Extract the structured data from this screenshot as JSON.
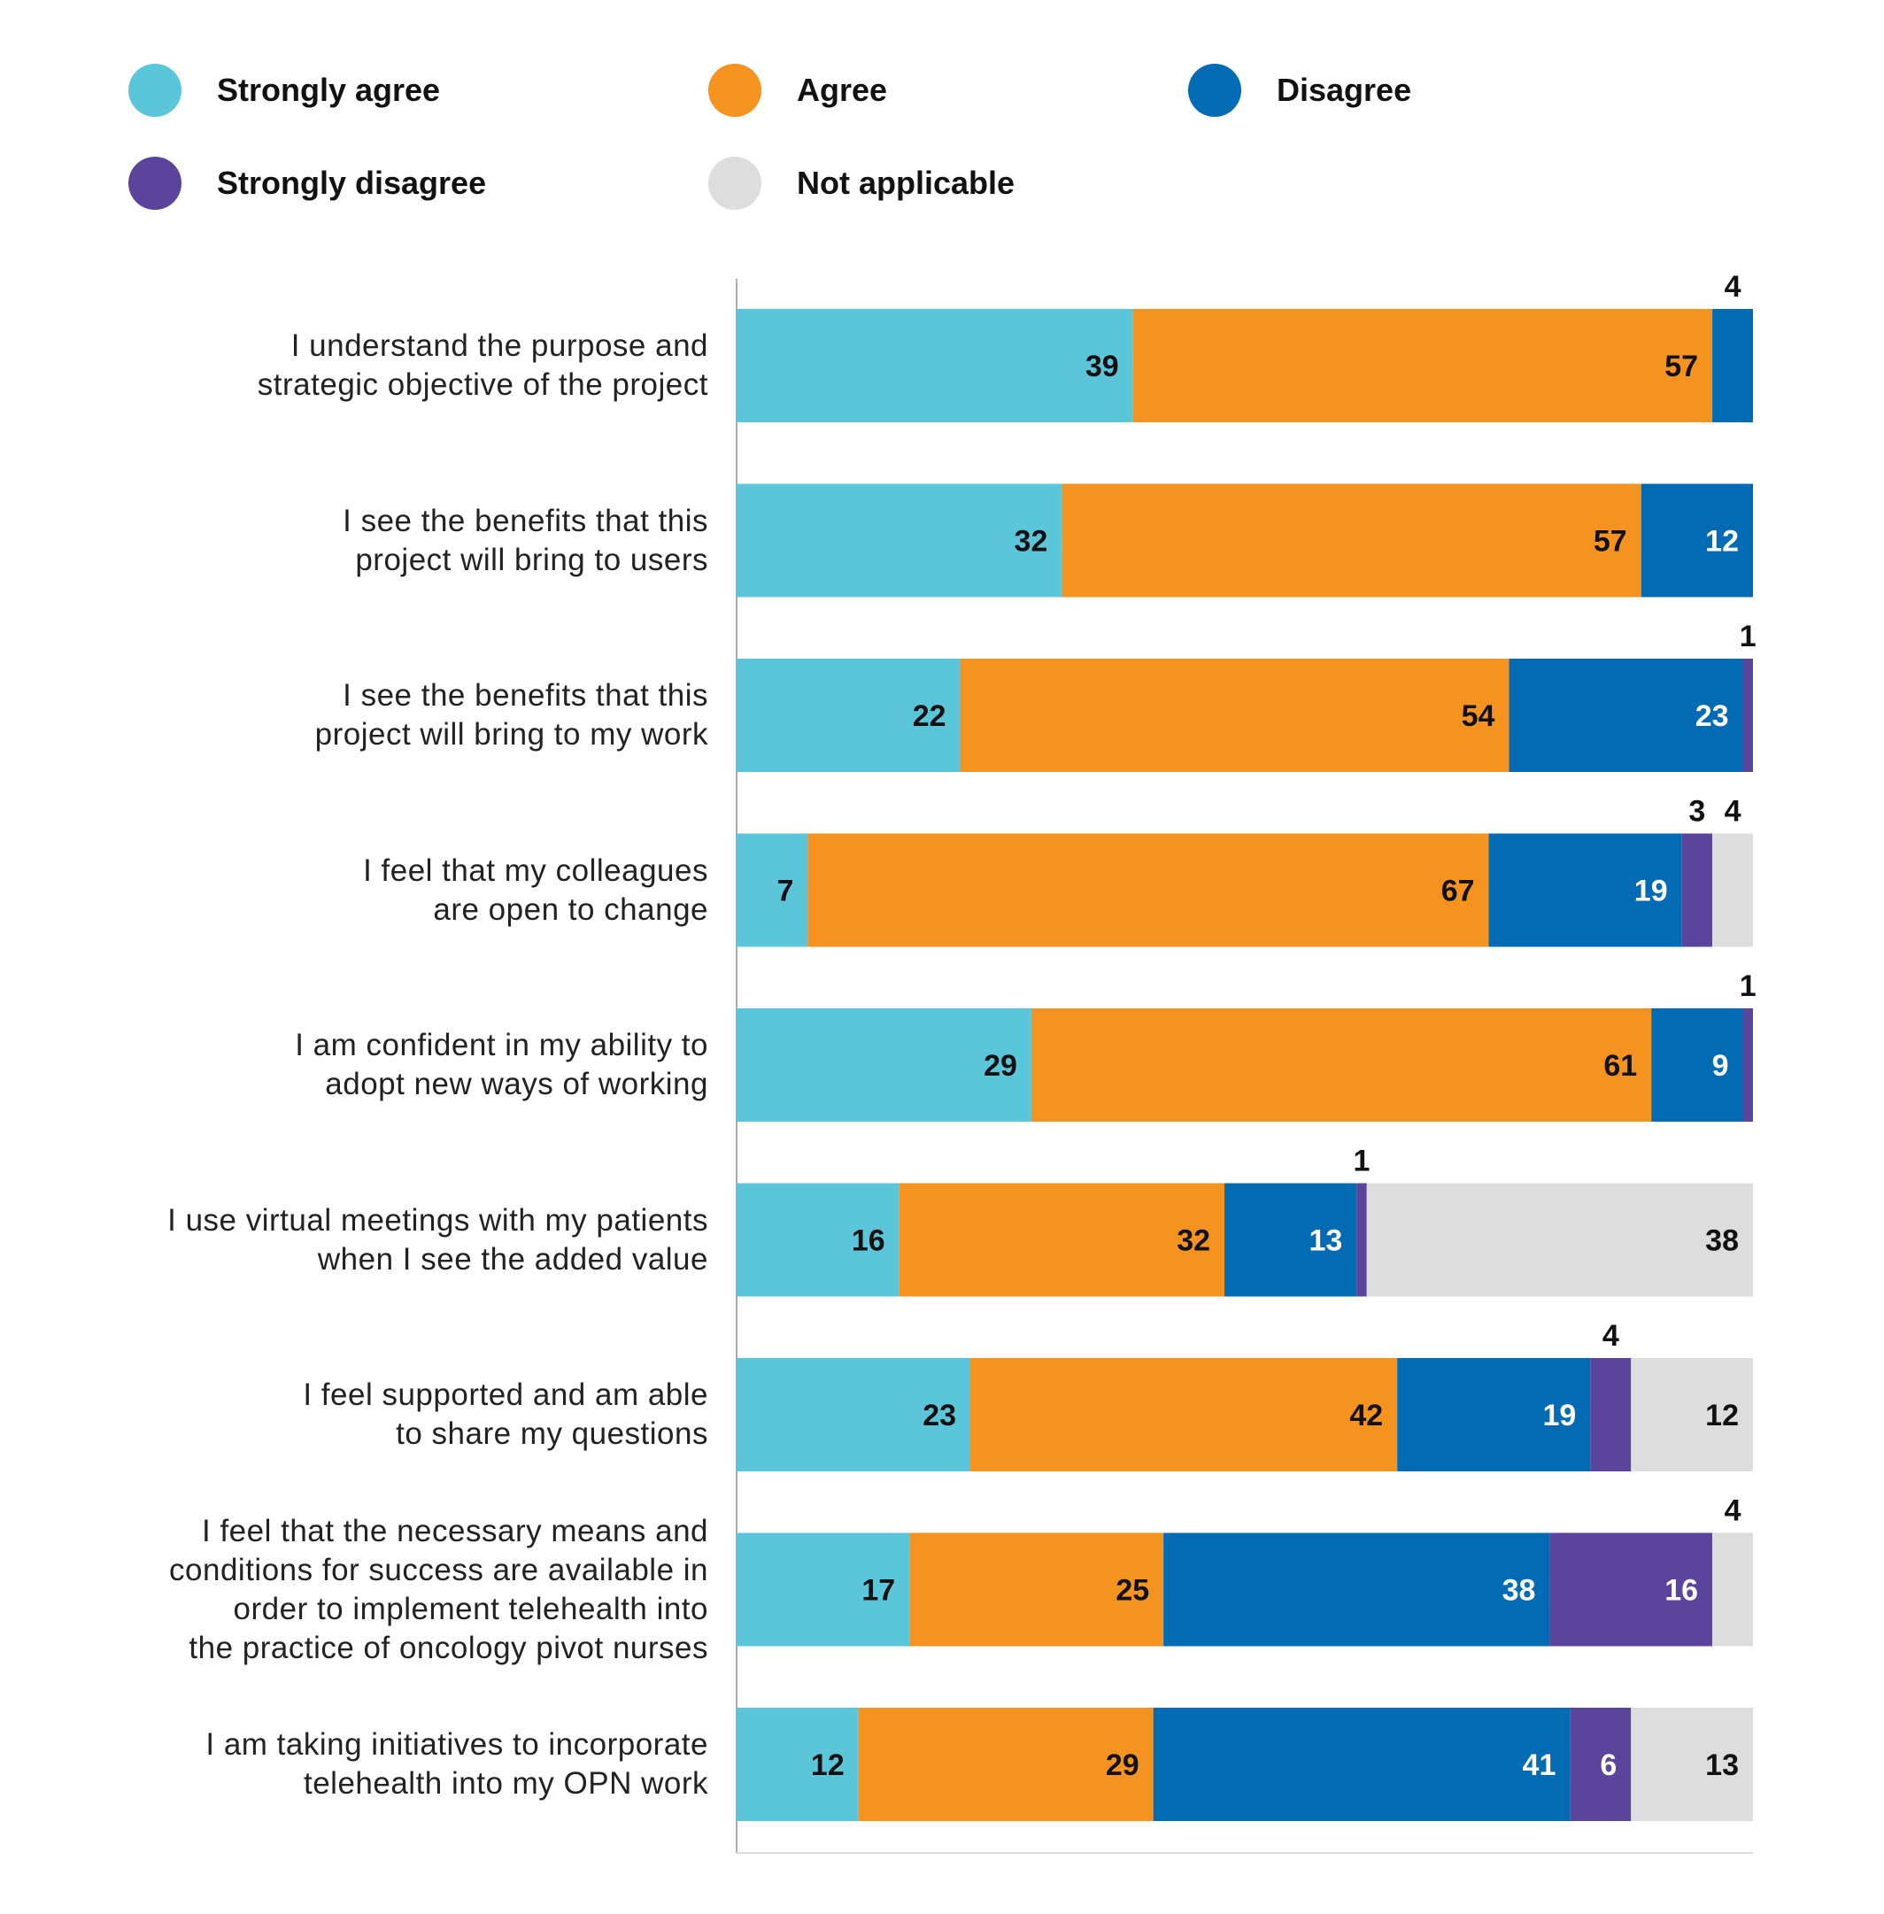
{
  "legend": [
    {
      "label": "Strongly agree",
      "color": "#5bc6d9"
    },
    {
      "label": "Agree",
      "color": "#f59320"
    },
    {
      "label": "Disagree",
      "color": "#036bb4"
    },
    {
      "label": "Strongly disagree",
      "color": "#5a449c"
    },
    {
      "label": "Not applicable",
      "color": "#dddddd"
    }
  ],
  "chart_data": {
    "type": "bar",
    "orientation": "horizontal",
    "stacked": true,
    "grid": false,
    "legend_position": "top",
    "categories": [
      [
        "I understand the purpose and",
        "strategic objective of the project"
      ],
      [
        "I see the benefits that this",
        "project will bring to users"
      ],
      [
        "I see the benefits that this",
        "project will bring to my work"
      ],
      [
        "I feel that my colleagues",
        "are open to change"
      ],
      [
        "I am confident in my ability to",
        "adopt new ways of working"
      ],
      [
        "I use virtual meetings with my patients",
        "when I see the added value"
      ],
      [
        "I feel supported and am able",
        "to share my questions"
      ],
      [
        "I feel that the necessary means and",
        "conditions for success are available in",
        "order to implement telehealth into",
        "the practice of oncology pivot nurses"
      ],
      [
        "I am taking initiatives to incorporate",
        "telehealth into my OPN work"
      ]
    ],
    "series": [
      {
        "name": "Strongly agree",
        "color": "#5bc6d9",
        "values": [
          39,
          32,
          22,
          7,
          29,
          16,
          23,
          17,
          12
        ]
      },
      {
        "name": "Agree",
        "color": "#f59320",
        "values": [
          57,
          57,
          54,
          67,
          61,
          32,
          42,
          25,
          29
        ]
      },
      {
        "name": "Disagree",
        "color": "#036bb4",
        "values": [
          4,
          12,
          23,
          19,
          9,
          13,
          19,
          38,
          41
        ]
      },
      {
        "name": "Strongly disagree",
        "color": "#5a449c",
        "values": [
          0,
          0,
          1,
          3,
          1,
          1,
          4,
          16,
          6
        ]
      },
      {
        "name": "Not applicable",
        "color": "#dddddd",
        "values": [
          0,
          0,
          0,
          4,
          0,
          38,
          12,
          4,
          13
        ]
      }
    ],
    "xlim": [
      0,
      100
    ]
  }
}
